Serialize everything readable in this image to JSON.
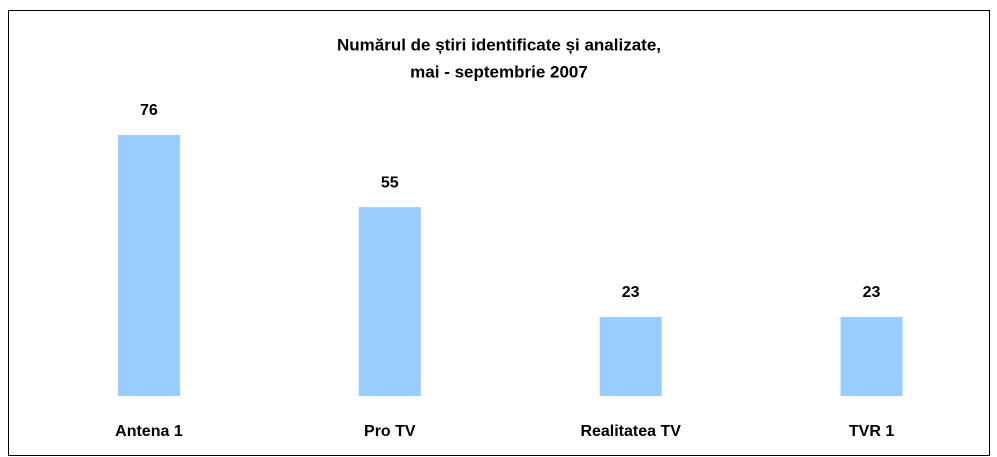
{
  "chart_data": {
    "type": "bar",
    "title": [
      "Numărul de știri identificate și analizate,",
      "mai - septembrie 2007"
    ],
    "categories": [
      "Antena 1",
      "Pro TV",
      "Realitatea TV",
      "TVR 1"
    ],
    "values": [
      76,
      55,
      23,
      23
    ],
    "color": "#99ccff"
  }
}
